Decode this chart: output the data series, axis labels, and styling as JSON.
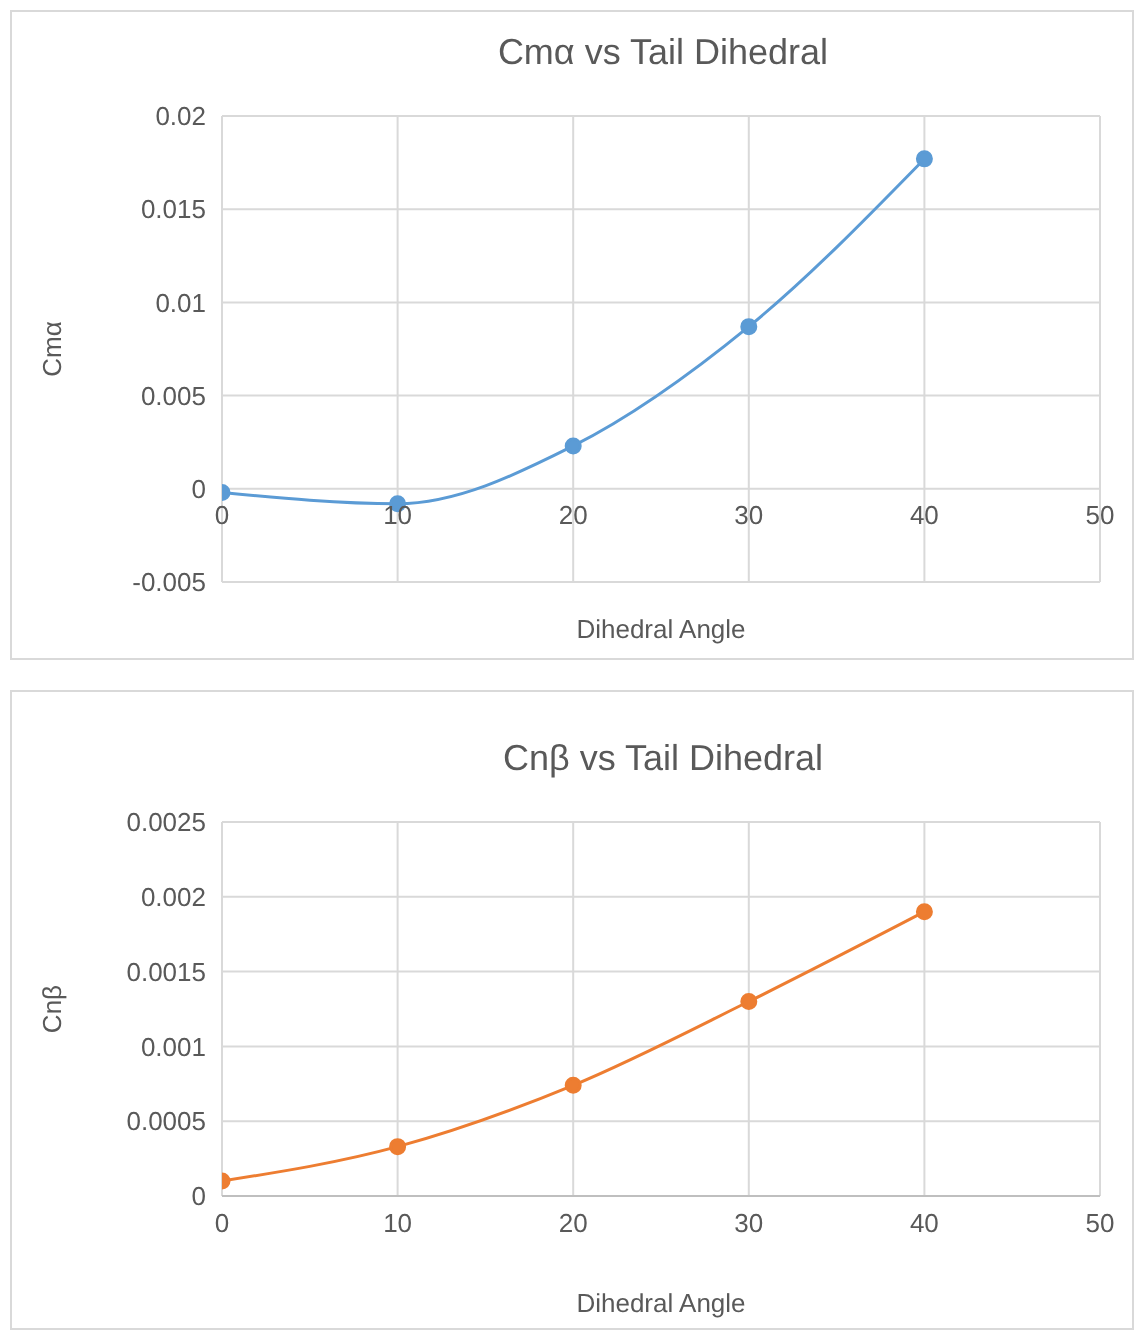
{
  "chart_data": [
    {
      "type": "line",
      "title": "Cmα vs Tail Dihedral",
      "xlabel": "Dihedral Angle",
      "ylabel": "Cmα",
      "x": [
        0,
        10,
        20,
        30,
        40
      ],
      "series": [
        {
          "color": "#5b9bd5",
          "values": [
            -0.0002,
            -0.0008,
            0.0023,
            0.0087,
            0.0177
          ]
        }
      ],
      "xlim": [
        0,
        50
      ],
      "xticks": [
        0,
        10,
        20,
        30,
        40,
        50
      ],
      "ylim": [
        -0.005,
        0.02
      ],
      "yticks": [
        -0.005,
        0,
        0.005,
        0.01,
        0.015,
        0.02
      ],
      "grid": true,
      "marker": "circle",
      "line_style": "solid"
    },
    {
      "type": "line",
      "title": "Cnβ vs Tail Dihedral",
      "xlabel": "Dihedral Angle",
      "ylabel": "Cnβ",
      "x": [
        0,
        10,
        20,
        30,
        40
      ],
      "series": [
        {
          "color": "#ed7d31",
          "values": [
            0.0001,
            0.00033,
            0.00074,
            0.0013,
            0.0019
          ]
        }
      ],
      "xlim": [
        0,
        50
      ],
      "xticks": [
        0,
        10,
        20,
        30,
        40,
        50
      ],
      "ylim": [
        0,
        0.0025
      ],
      "yticks": [
        0,
        0.0005,
        0.001,
        0.0015,
        0.002,
        0.0025
      ],
      "grid": true,
      "marker": "circle",
      "line_style": "solid"
    }
  ]
}
